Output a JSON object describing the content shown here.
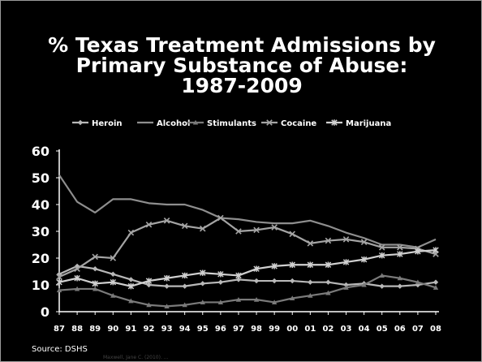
{
  "slide": {
    "title_lines": [
      "% Texas Treatment Admissions by",
      "Primary Substance of Abuse:",
      "1987-2009"
    ],
    "source": "Source: DSHS",
    "watermark": "Maxwell, Jane C. (2010). ..."
  },
  "chart_data": {
    "type": "line",
    "title": "% Texas Treatment Admissions by Primary Substance of Abuse: 1987-2009",
    "xlabel": "",
    "ylabel": "",
    "categories": [
      "87",
      "88",
      "89",
      "90",
      "91",
      "92",
      "93",
      "94",
      "95",
      "96",
      "97",
      "98",
      "99",
      "00",
      "01",
      "02",
      "03",
      "04",
      "05",
      "06",
      "07",
      "08"
    ],
    "ylim": [
      0,
      60
    ],
    "yticks": [
      0,
      10,
      20,
      30,
      40,
      50,
      60
    ],
    "grid": false,
    "legend_position": "top",
    "series": [
      {
        "name": "Heroin",
        "marker": "diamond",
        "color": "#b8b8b8",
        "values": [
          14,
          17,
          16,
          14,
          12,
          10,
          9.5,
          9.5,
          10.5,
          11,
          12,
          11.5,
          11.5,
          11.5,
          11,
          11,
          10,
          10.5,
          9.5,
          9.5,
          10,
          11
        ]
      },
      {
        "name": "Alcohol",
        "marker": "none",
        "color": "#8e8e8e",
        "values": [
          51,
          41,
          37,
          42,
          42,
          40.5,
          40,
          40,
          38,
          35,
          34.5,
          33.5,
          33,
          33,
          34,
          32,
          29.5,
          27.5,
          25,
          25,
          24,
          27
        ]
      },
      {
        "name": "Stimulants",
        "marker": "triangle",
        "color": "#7a7a7a",
        "values": [
          8,
          8.5,
          8.5,
          6,
          4,
          2.5,
          2,
          2.5,
          3.5,
          3.5,
          4.5,
          4.5,
          3.5,
          5,
          6,
          7,
          9,
          10,
          13.5,
          12.5,
          11,
          9
        ]
      },
      {
        "name": "Cocaine",
        "marker": "x",
        "color": "#a4a4a4",
        "values": [
          13,
          16,
          20.5,
          20,
          29.5,
          32.5,
          34,
          32,
          31,
          35,
          30,
          30.5,
          31.5,
          29,
          25.5,
          26.5,
          27,
          26,
          24,
          24,
          23.5,
          21.5
        ]
      },
      {
        "name": "Marijuana",
        "marker": "star",
        "color": "#d0d0d0",
        "values": [
          11,
          12.5,
          10.5,
          11,
          9.5,
          11.5,
          12.5,
          13.5,
          14.5,
          14,
          13.5,
          16,
          17,
          17.5,
          17.5,
          17.5,
          18.5,
          19.5,
          21,
          21.5,
          22.5,
          23
        ]
      }
    ]
  }
}
